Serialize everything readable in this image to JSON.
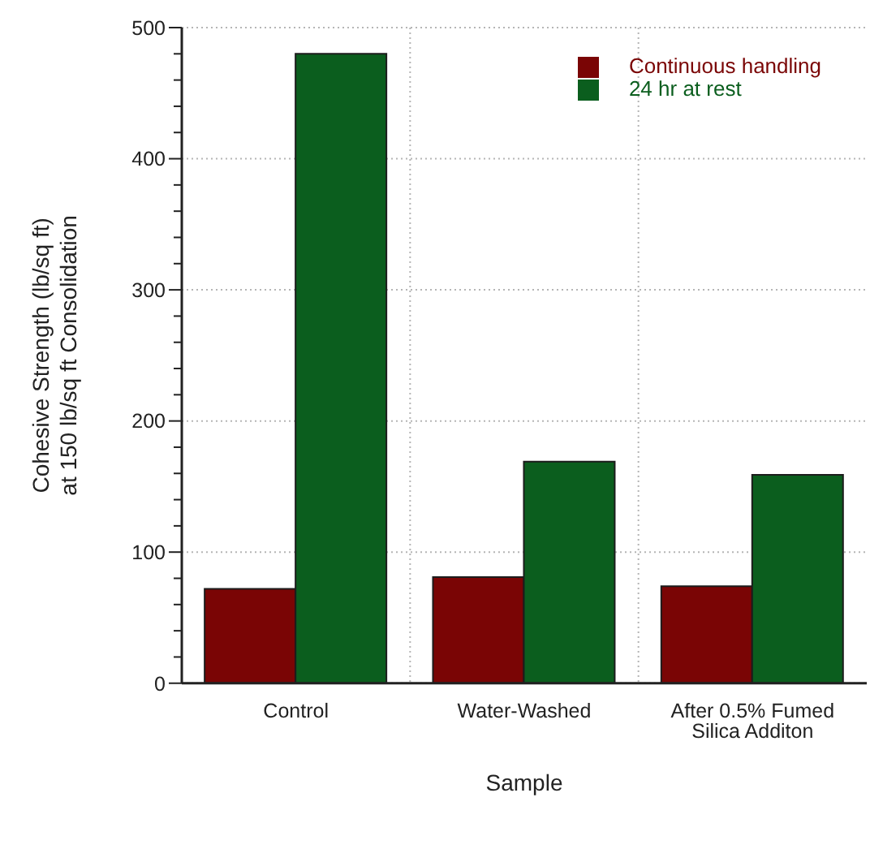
{
  "chart_data": {
    "type": "bar",
    "xlabel": "Sample",
    "ylabel": "Cohesive Strength (lb/sq ft)\nat 150 lb/sq ft Consolidation",
    "categories": [
      "Control",
      "Water-Washed",
      "After 0.5% Fumed Silica Additon"
    ],
    "series": [
      {
        "name": "Continuous  handling",
        "color": "#7a0505",
        "values": [
          72,
          81,
          74
        ]
      },
      {
        "name": "24 hr at rest",
        "color": "#0b5e1e",
        "values": [
          480,
          169,
          159
        ]
      }
    ],
    "ylim": [
      0,
      500
    ],
    "yticks": [
      0,
      {
        "value": 20,
        "label": null
      },
      {
        "value": 40,
        "label": null
      },
      {
        "value": 60,
        "label": null
      },
      {
        "value": 80,
        "label": null
      },
      100,
      {
        "value": 120,
        "label": null
      },
      {
        "value": 140,
        "label": null
      },
      {
        "value": 160,
        "label": null
      },
      {
        "value": 180,
        "label": null
      },
      200,
      {
        "value": 220,
        "label": null
      },
      {
        "value": 240,
        "label": null
      },
      {
        "value": 260,
        "label": null
      },
      {
        "value": 280,
        "label": null
      },
      300,
      {
        "value": 320,
        "label": null
      },
      {
        "value": 340,
        "label": null
      },
      {
        "value": 360,
        "label": null
      },
      {
        "value": 380,
        "label": null
      },
      400,
      {
        "value": 420,
        "label": null
      },
      {
        "value": 440,
        "label": null
      },
      {
        "value": 460,
        "label": null
      },
      {
        "value": 480,
        "label": null
      },
      500
    ],
    "grid": true,
    "legend": "top right"
  }
}
